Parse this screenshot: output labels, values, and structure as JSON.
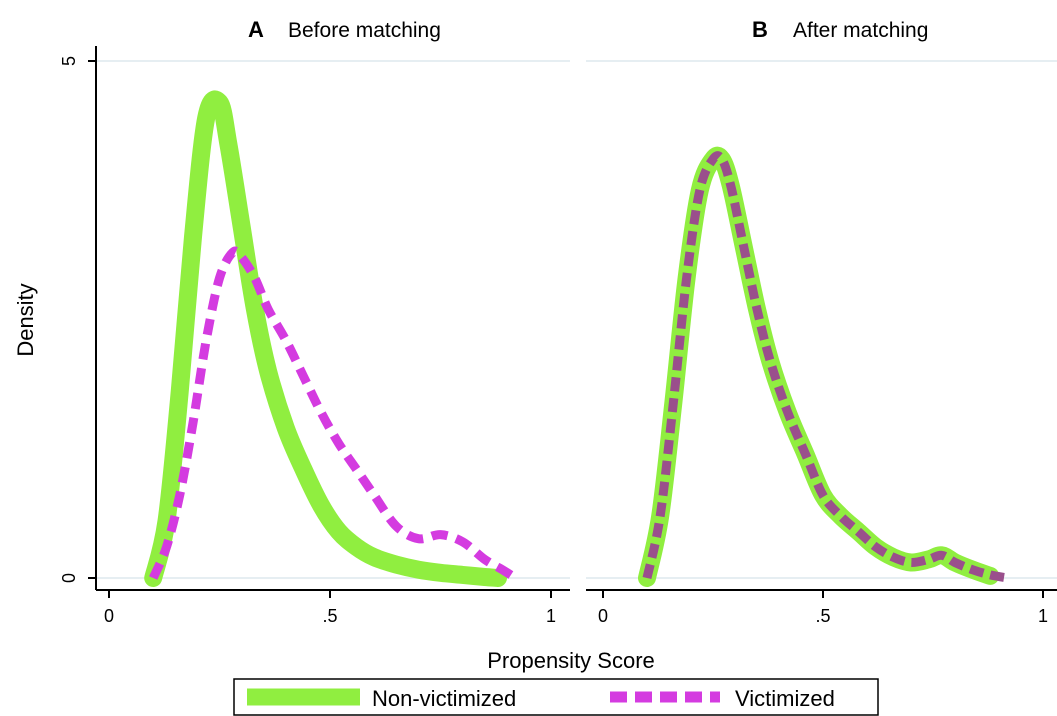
{
  "figure": {
    "ylabel": "Density",
    "xlabel": "Propensity Score",
    "legend": {
      "placement": "bottom-center",
      "items": [
        {
          "label": "Non-victimized",
          "color": "#90ee40",
          "style": "solid-thick"
        },
        {
          "label": "Victimized",
          "color": "#d43be0",
          "style": "dashed"
        }
      ]
    }
  },
  "chart_data": [
    {
      "type": "line",
      "panel_letter": "A",
      "title": "Before matching",
      "xlim": [
        0,
        1
      ],
      "ylim": [
        0,
        5
      ],
      "x_ticks": [
        0,
        0.5,
        1
      ],
      "x_tick_labels": [
        "0",
        ".5",
        "1"
      ],
      "y_ticks": [
        0,
        5
      ],
      "y_tick_labels": [
        "0",
        "5"
      ],
      "grid": "horizontal",
      "series": [
        {
          "name": "Non-victimized",
          "color": "#90ee40",
          "x": [
            0.1,
            0.13,
            0.16,
            0.19,
            0.22,
            0.25,
            0.27,
            0.3,
            0.33,
            0.36,
            0.4,
            0.44,
            0.48,
            0.52,
            0.56,
            0.6,
            0.65,
            0.7,
            0.75,
            0.8,
            0.85,
            0.88
          ],
          "y": [
            0.0,
            0.55,
            1.8,
            3.3,
            4.45,
            4.6,
            4.2,
            3.4,
            2.6,
            2.0,
            1.45,
            1.05,
            0.7,
            0.45,
            0.3,
            0.2,
            0.13,
            0.08,
            0.05,
            0.03,
            0.01,
            0.0
          ]
        },
        {
          "name": "Victimized",
          "color": "#d43be0",
          "x": [
            0.1,
            0.13,
            0.16,
            0.19,
            0.22,
            0.25,
            0.28,
            0.3,
            0.33,
            0.36,
            0.4,
            0.44,
            0.48,
            0.52,
            0.56,
            0.6,
            0.65,
            0.7,
            0.75,
            0.8,
            0.85,
            0.89,
            0.92
          ],
          "y": [
            0.0,
            0.3,
            0.8,
            1.5,
            2.3,
            2.9,
            3.15,
            3.1,
            2.9,
            2.6,
            2.3,
            1.95,
            1.6,
            1.3,
            1.05,
            0.8,
            0.5,
            0.38,
            0.42,
            0.35,
            0.18,
            0.08,
            0.0
          ]
        }
      ]
    },
    {
      "type": "line",
      "panel_letter": "B",
      "title": "After matching",
      "xlim": [
        0,
        1
      ],
      "ylim": [
        0,
        5
      ],
      "x_ticks": [
        0,
        0.5,
        1
      ],
      "x_tick_labels": [
        "0",
        ".5",
        "1"
      ],
      "y_ticks": [
        0,
        5
      ],
      "y_tick_labels": [
        "",
        ""
      ],
      "grid": "horizontal",
      "series": [
        {
          "name": "Non-victimized",
          "color": "#90ee40",
          "x": [
            0.1,
            0.13,
            0.16,
            0.19,
            0.22,
            0.25,
            0.27,
            0.29,
            0.32,
            0.35,
            0.38,
            0.42,
            0.46,
            0.5,
            0.54,
            0.58,
            0.62,
            0.66,
            0.7,
            0.74,
            0.77,
            0.8,
            0.84,
            0.88
          ],
          "y": [
            0.0,
            0.6,
            1.7,
            2.9,
            3.75,
            4.05,
            4.05,
            3.8,
            3.2,
            2.6,
            2.1,
            1.6,
            1.2,
            0.8,
            0.6,
            0.45,
            0.3,
            0.2,
            0.15,
            0.18,
            0.22,
            0.15,
            0.08,
            0.02
          ]
        },
        {
          "name": "Victimized",
          "color": "#d43be0",
          "x": [
            0.1,
            0.13,
            0.16,
            0.19,
            0.22,
            0.25,
            0.27,
            0.29,
            0.32,
            0.35,
            0.38,
            0.42,
            0.46,
            0.5,
            0.54,
            0.58,
            0.62,
            0.66,
            0.7,
            0.74,
            0.77,
            0.8,
            0.84,
            0.88,
            0.92
          ],
          "y": [
            0.0,
            0.6,
            1.7,
            2.9,
            3.75,
            4.05,
            4.05,
            3.8,
            3.2,
            2.6,
            2.1,
            1.6,
            1.2,
            0.8,
            0.6,
            0.45,
            0.3,
            0.2,
            0.15,
            0.18,
            0.22,
            0.15,
            0.08,
            0.03,
            0.0
          ]
        }
      ]
    }
  ]
}
